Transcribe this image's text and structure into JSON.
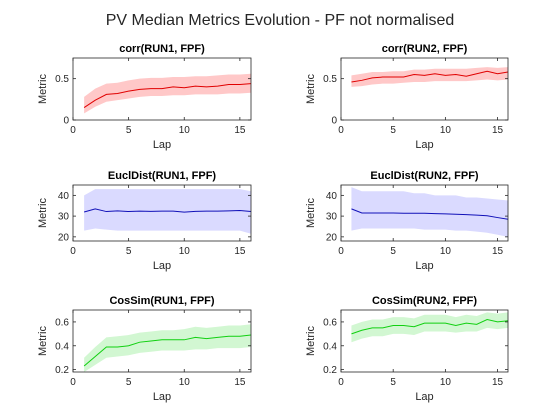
{
  "figure": {
    "title": "PV Median Metrics Evolution - PF not normalised"
  },
  "chart_data": [
    {
      "type": "line",
      "title": "corr(RUN1, FPF)",
      "xlabel": "Lap",
      "ylabel": "Metric",
      "xlim": [
        0,
        16
      ],
      "ylim": [
        0,
        0.75
      ],
      "xticks": [
        0,
        5,
        10,
        15
      ],
      "yticks": [
        0,
        0.5
      ],
      "color": "#e00000",
      "band_color": "#ffc8c8",
      "x": [
        1,
        2,
        3,
        4,
        5,
        6,
        7,
        8,
        9,
        10,
        11,
        12,
        13,
        14,
        15,
        16
      ],
      "y": [
        0.15,
        0.24,
        0.31,
        0.32,
        0.35,
        0.37,
        0.38,
        0.38,
        0.4,
        0.39,
        0.41,
        0.4,
        0.41,
        0.43,
        0.43,
        0.44
      ],
      "band_low": [
        0.08,
        0.16,
        0.22,
        0.24,
        0.26,
        0.28,
        0.29,
        0.29,
        0.3,
        0.3,
        0.31,
        0.31,
        0.31,
        0.32,
        0.32,
        0.33
      ],
      "band_high": [
        0.28,
        0.38,
        0.44,
        0.45,
        0.48,
        0.5,
        0.51,
        0.51,
        0.52,
        0.52,
        0.53,
        0.53,
        0.54,
        0.55,
        0.55,
        0.56
      ]
    },
    {
      "type": "line",
      "title": "corr(RUN2, FPF)",
      "xlabel": "Lap",
      "ylabel": "Metric",
      "xlim": [
        0,
        16
      ],
      "ylim": [
        0,
        0.75
      ],
      "xticks": [
        0,
        5,
        10,
        15
      ],
      "yticks": [
        0,
        0.5
      ],
      "color": "#e00000",
      "band_color": "#ffc8c8",
      "x": [
        1,
        2,
        3,
        4,
        5,
        6,
        7,
        8,
        9,
        10,
        11,
        12,
        13,
        14,
        15,
        16
      ],
      "y": [
        0.46,
        0.48,
        0.51,
        0.52,
        0.52,
        0.52,
        0.55,
        0.54,
        0.56,
        0.54,
        0.55,
        0.53,
        0.56,
        0.59,
        0.56,
        0.58
      ],
      "band_low": [
        0.4,
        0.41,
        0.43,
        0.44,
        0.44,
        0.45,
        0.46,
        0.46,
        0.47,
        0.47,
        0.47,
        0.47,
        0.48,
        0.49,
        0.48,
        0.49
      ],
      "band_high": [
        0.54,
        0.56,
        0.58,
        0.58,
        0.59,
        0.59,
        0.61,
        0.61,
        0.62,
        0.62,
        0.62,
        0.62,
        0.63,
        0.64,
        0.63,
        0.64
      ]
    },
    {
      "type": "line",
      "title": "EuclDist(RUN1, FPF)",
      "xlabel": "Lap",
      "ylabel": "Metric",
      "xlim": [
        0,
        16
      ],
      "ylim": [
        18,
        45
      ],
      "xticks": [
        0,
        5,
        10,
        15
      ],
      "yticks": [
        20,
        30,
        40
      ],
      "color": "#1010b8",
      "band_color": "#dadaff",
      "x": [
        1,
        2,
        3,
        4,
        5,
        6,
        7,
        8,
        9,
        10,
        11,
        12,
        13,
        14,
        15,
        16
      ],
      "y": [
        32.0,
        33.5,
        32.2,
        32.5,
        32.2,
        32.4,
        32.3,
        32.4,
        32.4,
        31.9,
        32.3,
        32.4,
        32.4,
        32.5,
        32.7,
        32.2
      ],
      "band_low": [
        23.0,
        24.0,
        23.5,
        23.0,
        23.0,
        23.0,
        23.0,
        23.0,
        23.0,
        23.0,
        23.0,
        23.0,
        23.0,
        23.0,
        23.0,
        21.5
      ],
      "band_high": [
        40.0,
        43.0,
        43.0,
        43.0,
        43.0,
        43.0,
        43.0,
        43.0,
        43.0,
        43.0,
        43.0,
        43.0,
        43.0,
        43.0,
        43.0,
        42.0
      ]
    },
    {
      "type": "line",
      "title": "EuclDist(RUN2, FPF)",
      "xlabel": "Lap",
      "ylabel": "Metric",
      "xlim": [
        0,
        16
      ],
      "ylim": [
        18,
        45
      ],
      "xticks": [
        0,
        5,
        10,
        15
      ],
      "yticks": [
        20,
        30,
        40
      ],
      "color": "#1010b8",
      "band_color": "#dadaff",
      "x": [
        1,
        2,
        3,
        4,
        5,
        6,
        7,
        8,
        9,
        10,
        11,
        12,
        13,
        14,
        15,
        16
      ],
      "y": [
        33.5,
        31.5,
        31.5,
        31.5,
        31.5,
        31.4,
        31.4,
        31.4,
        31.2,
        31.1,
        30.9,
        30.7,
        30.5,
        30.2,
        29.3,
        28.5
      ],
      "band_low": [
        23.0,
        24.0,
        24.0,
        24.0,
        24.0,
        24.0,
        24.0,
        23.5,
        23.5,
        23.5,
        23.0,
        23.0,
        22.5,
        22.0,
        21.0,
        20.0
      ],
      "band_high": [
        44.0,
        42.0,
        42.0,
        42.0,
        42.0,
        42.0,
        41.0,
        41.0,
        40.0,
        40.0,
        40.0,
        39.0,
        39.0,
        38.5,
        38.0,
        37.5
      ]
    },
    {
      "type": "line",
      "title": "CosSim(RUN1, FPF)",
      "xlabel": "Lap",
      "ylabel": "Metric",
      "xlim": [
        0,
        16
      ],
      "ylim": [
        0.18,
        0.7
      ],
      "xticks": [
        0,
        5,
        10,
        15
      ],
      "yticks": [
        0.2,
        0.4,
        0.6
      ],
      "color": "#10d010",
      "band_color": "#d2f7d2",
      "x": [
        1,
        2,
        3,
        4,
        5,
        6,
        7,
        8,
        9,
        10,
        11,
        12,
        13,
        14,
        15,
        16
      ],
      "y": [
        0.23,
        0.31,
        0.39,
        0.39,
        0.4,
        0.43,
        0.44,
        0.45,
        0.45,
        0.45,
        0.47,
        0.46,
        0.47,
        0.48,
        0.48,
        0.49
      ],
      "band_low": [
        0.18,
        0.24,
        0.3,
        0.31,
        0.32,
        0.34,
        0.35,
        0.36,
        0.36,
        0.36,
        0.37,
        0.37,
        0.38,
        0.38,
        0.38,
        0.39
      ],
      "band_high": [
        0.3,
        0.39,
        0.47,
        0.48,
        0.49,
        0.51,
        0.52,
        0.53,
        0.53,
        0.54,
        0.56,
        0.55,
        0.56,
        0.57,
        0.57,
        0.58
      ]
    },
    {
      "type": "line",
      "title": "CosSim(RUN2, FPF)",
      "xlabel": "Lap",
      "ylabel": "Metric",
      "xlim": [
        0,
        16
      ],
      "ylim": [
        0.18,
        0.7
      ],
      "xticks": [
        0,
        5,
        10,
        15
      ],
      "yticks": [
        0.2,
        0.4,
        0.6
      ],
      "color": "#10d010",
      "band_color": "#d2f7d2",
      "x": [
        1,
        2,
        3,
        4,
        5,
        6,
        7,
        8,
        9,
        10,
        11,
        12,
        13,
        14,
        15,
        16
      ],
      "y": [
        0.5,
        0.53,
        0.55,
        0.55,
        0.57,
        0.57,
        0.56,
        0.59,
        0.59,
        0.59,
        0.57,
        0.59,
        0.58,
        0.62,
        0.6,
        0.61
      ],
      "band_low": [
        0.43,
        0.46,
        0.48,
        0.48,
        0.5,
        0.5,
        0.49,
        0.52,
        0.52,
        0.52,
        0.51,
        0.52,
        0.52,
        0.55,
        0.54,
        0.55
      ],
      "band_high": [
        0.57,
        0.6,
        0.62,
        0.62,
        0.64,
        0.64,
        0.63,
        0.66,
        0.66,
        0.66,
        0.64,
        0.66,
        0.65,
        0.68,
        0.67,
        0.68
      ]
    }
  ]
}
